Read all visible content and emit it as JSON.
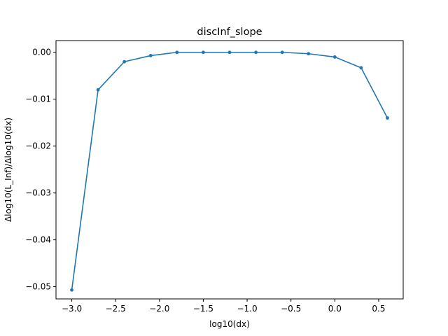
{
  "chart_data": {
    "type": "line",
    "title": "discInf_slope",
    "xlabel": "log10(dx)",
    "ylabel": "Δlog10(L_Inf)/Δlog10(dx)",
    "xlim": [
      -3.18,
      0.78
    ],
    "ylim": [
      -0.0526,
      0.0025
    ],
    "xticks": [
      -3.0,
      -2.5,
      -2.0,
      -1.5,
      -1.0,
      -0.5,
      0.0,
      0.5
    ],
    "xtick_labels": [
      "−3.0",
      "−2.5",
      "−2.0",
      "−1.5",
      "−1.0",
      "−0.5",
      "0.0",
      "0.5"
    ],
    "yticks": [
      0.0,
      -0.01,
      -0.02,
      -0.03,
      -0.04,
      -0.05
    ],
    "ytick_labels": [
      "0.00",
      "−0.01",
      "−0.02",
      "−0.03",
      "−0.04",
      "−0.05"
    ],
    "grid": false,
    "line_color": "#1f77b4",
    "series": [
      {
        "x": [
          -3.0,
          -2.7,
          -2.4,
          -2.1,
          -1.8,
          -1.5,
          -1.2,
          -0.9,
          -0.6,
          -0.3,
          0.0,
          0.3,
          0.6
        ],
        "y": [
          -0.0507,
          -0.008,
          -0.002,
          -0.0007,
          0.0,
          0.0,
          0.0,
          0.0,
          0.0,
          -0.0003,
          -0.001,
          -0.0033,
          -0.014
        ]
      }
    ]
  }
}
